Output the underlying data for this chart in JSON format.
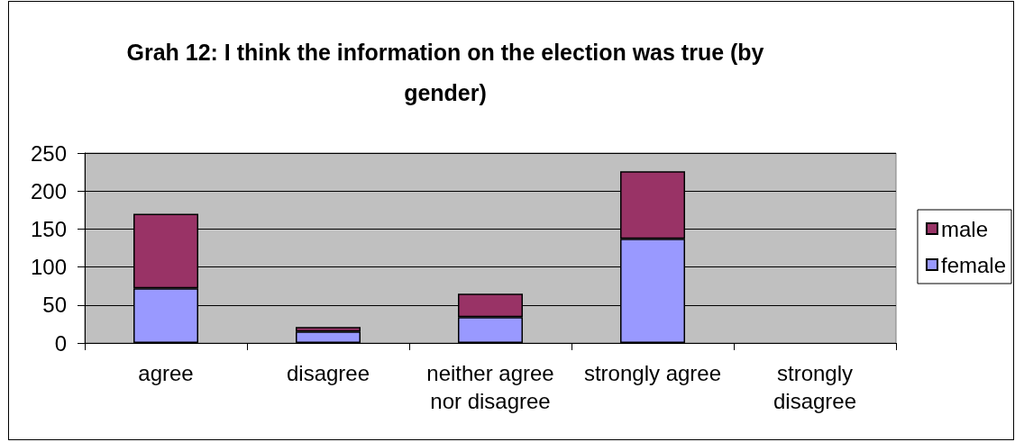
{
  "chart_data": {
    "type": "bar",
    "title": "Grah 12: I think the information on the election was true (by gender)",
    "categories": [
      "agree",
      "disagree",
      "neither agree nor disagree",
      "strongly agree",
      "strongly disagree"
    ],
    "series": [
      {
        "name": "female",
        "color": "#9999ff",
        "values": [
          72,
          15,
          34,
          137,
          0
        ]
      },
      {
        "name": "male",
        "color": "#993366",
        "values": [
          98,
          6,
          31,
          89,
          0
        ]
      }
    ],
    "stacked": true,
    "ylim": [
      0,
      250
    ],
    "yticks": [
      0,
      50,
      100,
      150,
      200,
      250
    ],
    "grid": "y",
    "legend": "right"
  }
}
